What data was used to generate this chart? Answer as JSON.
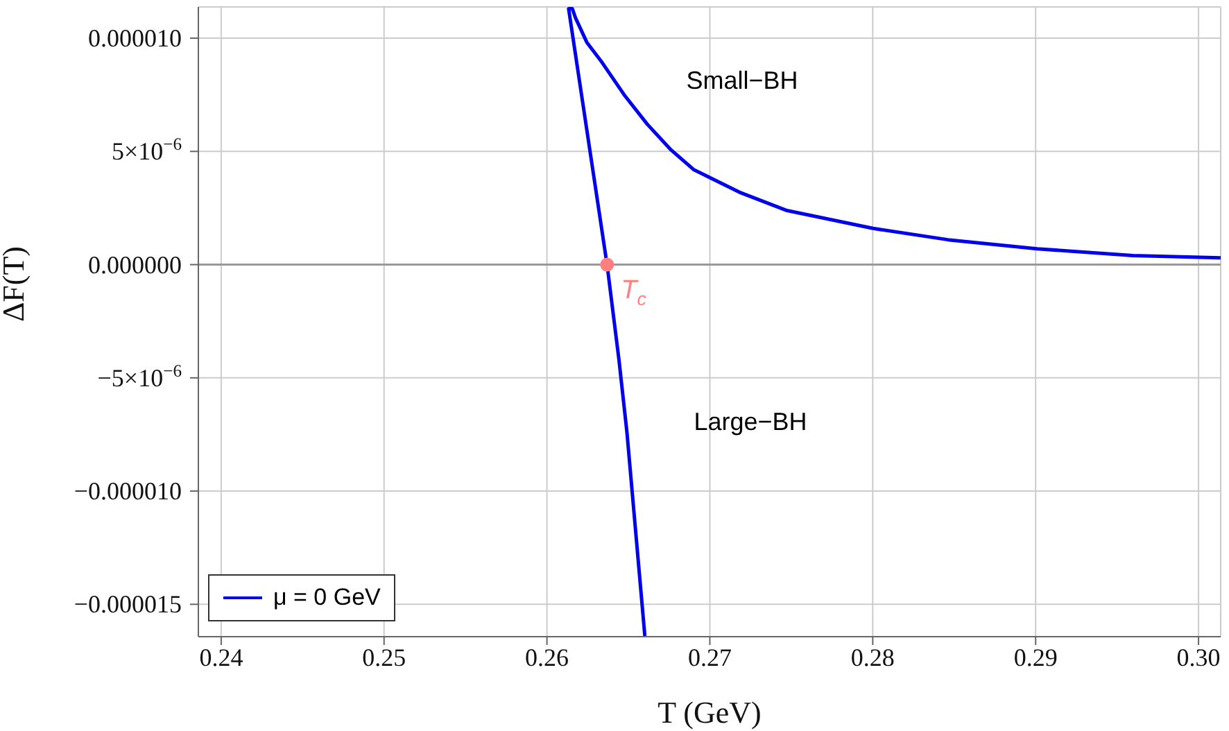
{
  "chart_data": {
    "type": "line",
    "xlabel": "T (GeV)",
    "ylabel": "ΔF(T)",
    "xlim": [
      0.2386,
      0.30136
    ],
    "xticks": [
      0.24,
      0.25,
      0.26,
      0.27,
      0.28,
      0.29,
      {
        "value": 0.3,
        "label": "0.30"
      }
    ],
    "ylim": [
      -1.643e-05,
      1.138e-05
    ],
    "yticks": [
      {
        "value": -1.5e-05,
        "label": "−0.000015"
      },
      {
        "value": -1e-05,
        "label": "−0.000010"
      },
      {
        "value": -5e-06,
        "label": "−5×10$^{−6}$"
      },
      {
        "value": 0,
        "label": "0.000000"
      },
      {
        "value": 5e-06,
        "label": "5×10$^{−6}$"
      },
      {
        "value": 1e-05,
        "label": "0.000010"
      }
    ],
    "grid": true,
    "legend": "bottom left",
    "series": [
      {
        "name": "μ = 0 GeV",
        "color": "#0000ee",
        "marker": "none",
        "x": [
          0.26601,
          0.26491,
          0.26442,
          0.26369,
          0.26133,
          0.26156,
          0.26175,
          0.26246,
          0.26331,
          0.26474,
          0.26616,
          0.26757,
          0.269,
          0.27181,
          0.27468,
          0.28001,
          0.28461,
          0.29009,
          0.29597,
          0.30136
        ],
        "values": [
          -1.64e-05,
          -7.4e-06,
          -4.2e-06,
          0,
          1.13e-05,
          1.13e-05,
          1.09e-05,
          9.8e-06,
          9e-06,
          7.5e-06,
          6.2e-06,
          5.1e-06,
          4.2e-06,
          3.2e-06,
          2.4e-06,
          1.6e-06,
          1.1e-06,
          7e-07,
          4e-07,
          3e-07
        ]
      },
      {
        "type": "scatter",
        "color": "#ff8080",
        "marker": "circle",
        "x": [
          0.26369
        ],
        "values": [
          0
        ]
      }
    ],
    "ref_lines": [
      {
        "axis": "y",
        "value": 0,
        "color": "#999999"
      }
    ],
    "annotations": [
      "Small−BH",
      "Large−BH",
      {
        "text": "T$_{c}$",
        "x": 0.26369,
        "y": 0
      }
    ]
  }
}
